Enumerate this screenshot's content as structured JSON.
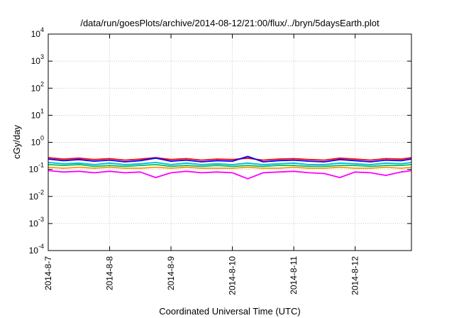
{
  "chart_data": {
    "type": "line",
    "title": "/data/run/goesPlots/archive/2014-08-12/21:00/flux/../bryn/5daysEarth.plot",
    "xlabel": "Coordinated Universal Time (UTC)",
    "ylabel": "cGy/day",
    "x_scale": "time",
    "y_scale": "log",
    "xlim": [
      "2014-08-07T00:00",
      "2014-08-12T22:00"
    ],
    "ylim": [
      0.0001,
      10000
    ],
    "x_ticks": [
      "2014-8-7",
      "2014-8-8",
      "2014-8-9",
      "2014-8-10",
      "2014-8-11",
      "2014-8-12"
    ],
    "x_tick_dates": [
      "2014-08-07",
      "2014-08-08",
      "2014-08-09",
      "2014-08-10",
      "2014-08-11",
      "2014-08-12"
    ],
    "y_ticks": [
      {
        "base": "10",
        "exp": "-4"
      },
      {
        "base": "10",
        "exp": "-3"
      },
      {
        "base": "10",
        "exp": "-2"
      },
      {
        "base": "10",
        "exp": "-1"
      },
      {
        "base": "10",
        "exp": "0"
      },
      {
        "base": "10",
        "exp": "1"
      },
      {
        "base": "10",
        "exp": "2"
      },
      {
        "base": "10",
        "exp": "3"
      },
      {
        "base": "10",
        "exp": "4"
      }
    ],
    "y_tick_values": [
      0.0001,
      0.001,
      0.01,
      0.1,
      1,
      10,
      100,
      1000,
      10000
    ],
    "grid": true,
    "legend": "none",
    "x": [
      "2014-08-07T00:00",
      "2014-08-07T06:00",
      "2014-08-07T12:00",
      "2014-08-07T18:00",
      "2014-08-08T00:00",
      "2014-08-08T06:00",
      "2014-08-08T12:00",
      "2014-08-08T18:00",
      "2014-08-09T00:00",
      "2014-08-09T06:00",
      "2014-08-09T12:00",
      "2014-08-09T18:00",
      "2014-08-10T00:00",
      "2014-08-10T06:00",
      "2014-08-10T12:00",
      "2014-08-10T18:00",
      "2014-08-11T00:00",
      "2014-08-11T06:00",
      "2014-08-11T12:00",
      "2014-08-11T18:00",
      "2014-08-12T00:00",
      "2014-08-12T06:00",
      "2014-08-12T12:00",
      "2014-08-12T18:00",
      "2014-08-12T22:00"
    ],
    "series": [
      {
        "color": "#ff0000",
        "values": [
          0.27,
          0.24,
          0.26,
          0.23,
          0.25,
          0.22,
          0.24,
          0.27,
          0.23,
          0.25,
          0.22,
          0.24,
          0.23,
          0.26,
          0.22,
          0.24,
          0.25,
          0.23,
          0.22,
          0.26,
          0.24,
          0.22,
          0.25,
          0.24,
          0.27
        ]
      },
      {
        "color": "#0000ff",
        "values": [
          0.24,
          0.21,
          0.23,
          0.2,
          0.22,
          0.19,
          0.21,
          0.26,
          0.2,
          0.22,
          0.19,
          0.21,
          0.2,
          0.3,
          0.19,
          0.21,
          0.22,
          0.2,
          0.19,
          0.23,
          0.21,
          0.19,
          0.22,
          0.21,
          0.24
        ]
      },
      {
        "color": "#00b8d8",
        "values": [
          0.18,
          0.16,
          0.17,
          0.15,
          0.17,
          0.15,
          0.16,
          0.18,
          0.15,
          0.17,
          0.15,
          0.16,
          0.15,
          0.17,
          0.15,
          0.16,
          0.17,
          0.15,
          0.15,
          0.17,
          0.16,
          0.15,
          0.17,
          0.16,
          0.18
        ]
      },
      {
        "color": "#00c060",
        "values": [
          0.15,
          0.14,
          0.15,
          0.13,
          0.14,
          0.13,
          0.14,
          0.15,
          0.13,
          0.14,
          0.13,
          0.14,
          0.13,
          0.14,
          0.13,
          0.14,
          0.14,
          0.13,
          0.13,
          0.14,
          0.14,
          0.13,
          0.14,
          0.14,
          0.15
        ]
      },
      {
        "color": "#ff9900",
        "values": [
          0.12,
          0.11,
          0.12,
          0.11,
          0.12,
          0.11,
          0.11,
          0.12,
          0.11,
          0.12,
          0.11,
          0.11,
          0.11,
          0.12,
          0.11,
          0.11,
          0.12,
          0.11,
          0.11,
          0.12,
          0.11,
          0.11,
          0.12,
          0.11,
          0.12
        ]
      },
      {
        "color": "#ff00ff",
        "values": [
          0.09,
          0.08,
          0.085,
          0.075,
          0.085,
          0.075,
          0.08,
          0.05,
          0.075,
          0.085,
          0.075,
          0.08,
          0.075,
          0.045,
          0.075,
          0.08,
          0.085,
          0.075,
          0.07,
          0.05,
          0.08,
          0.075,
          0.06,
          0.08,
          0.09
        ]
      }
    ]
  }
}
